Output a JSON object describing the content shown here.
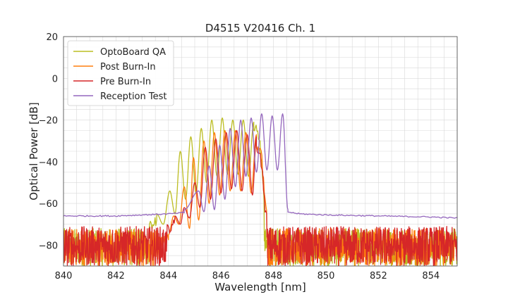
{
  "chart_data": {
    "type": "line",
    "title": "D4515 V20416 Ch. 1",
    "xlabel": "Wavelength [nm]",
    "ylabel": "Optical Power [dB]",
    "xlim": [
      840,
      855
    ],
    "ylim": [
      -90,
      20
    ],
    "x_ticks": [
      "840",
      "842",
      "844",
      "846",
      "848",
      "850",
      "852",
      "854"
    ],
    "y_ticks": [
      "20",
      "0",
      "−20",
      "−40",
      "−60",
      "−80"
    ],
    "grid": true,
    "legend_position": "top-left",
    "series": [
      {
        "name": "OptoBoard QA",
        "color": "#bcbd22",
        "noise_floor_range": [
          -90,
          -72
        ],
        "envelope": [
          [
            843.0,
            -72
          ],
          [
            843.5,
            -66
          ],
          [
            843.8,
            -62
          ],
          [
            844.0,
            -57
          ],
          [
            844.3,
            -45
          ],
          [
            844.5,
            -37
          ],
          [
            844.7,
            -33
          ],
          [
            845.0,
            -28
          ],
          [
            845.3,
            -24
          ],
          [
            845.5,
            -21
          ],
          [
            845.7,
            -20
          ],
          [
            846.0,
            -19
          ],
          [
            846.3,
            -19
          ],
          [
            846.6,
            -20
          ],
          [
            846.9,
            -20
          ],
          [
            847.2,
            -21
          ],
          [
            847.4,
            -22
          ],
          [
            847.55,
            -35
          ],
          [
            847.65,
            -60
          ],
          [
            847.75,
            -70
          ],
          [
            848.0,
            -73
          ]
        ],
        "peaks": [
          [
            843.55,
            -65
          ],
          [
            844.05,
            -54
          ],
          [
            844.45,
            -35
          ],
          [
            844.85,
            -28
          ],
          [
            845.25,
            -24
          ],
          [
            845.65,
            -20
          ],
          [
            846.05,
            -19
          ],
          [
            846.45,
            -20
          ],
          [
            846.85,
            -20
          ],
          [
            847.25,
            -21
          ]
        ],
        "troughs": [
          [
            843.8,
            -70
          ],
          [
            844.25,
            -65
          ],
          [
            844.65,
            -58
          ],
          [
            845.05,
            -55
          ],
          [
            845.45,
            -50
          ],
          [
            845.85,
            -47
          ],
          [
            846.25,
            -46
          ],
          [
            846.65,
            -46
          ],
          [
            847.05,
            -47
          ]
        ]
      },
      {
        "name": "Post Burn-In",
        "color": "#ff7f0e",
        "noise_floor_range": [
          -90,
          -72
        ],
        "envelope": [
          [
            843.6,
            -78
          ],
          [
            844.0,
            -72
          ],
          [
            844.4,
            -66
          ],
          [
            844.7,
            -48
          ],
          [
            845.0,
            -38
          ],
          [
            845.3,
            -31
          ],
          [
            845.5,
            -28
          ],
          [
            845.8,
            -26
          ],
          [
            846.1,
            -25
          ],
          [
            846.4,
            -25
          ],
          [
            846.7,
            -26
          ],
          [
            847.0,
            -26
          ],
          [
            847.3,
            -27
          ],
          [
            847.55,
            -35
          ],
          [
            847.7,
            -60
          ],
          [
            847.85,
            -72
          ],
          [
            848.0,
            -76
          ]
        ],
        "peaks": [
          [
            844.2,
            -66
          ],
          [
            844.6,
            -52
          ],
          [
            844.95,
            -38
          ],
          [
            845.35,
            -30
          ],
          [
            845.75,
            -26
          ],
          [
            846.15,
            -25
          ],
          [
            846.55,
            -25
          ],
          [
            846.95,
            -26
          ],
          [
            847.35,
            -27
          ]
        ],
        "troughs": [
          [
            844.0,
            -75
          ],
          [
            844.4,
            -70
          ],
          [
            844.8,
            -72
          ],
          [
            845.15,
            -68
          ],
          [
            845.55,
            -60
          ],
          [
            845.95,
            -56
          ],
          [
            846.35,
            -54
          ],
          [
            846.75,
            -54
          ],
          [
            847.15,
            -55
          ]
        ]
      },
      {
        "name": "Pre Burn-In",
        "color": "#d62728",
        "noise_floor_range": [
          -90,
          -71
        ],
        "envelope": [
          [
            843.4,
            -74
          ],
          [
            843.8,
            -72
          ],
          [
            844.2,
            -66
          ],
          [
            844.5,
            -62
          ],
          [
            844.8,
            -52
          ],
          [
            845.1,
            -44
          ],
          [
            845.4,
            -36
          ],
          [
            845.6,
            -31
          ],
          [
            845.9,
            -28
          ],
          [
            846.2,
            -26
          ],
          [
            846.5,
            -25
          ],
          [
            846.8,
            -26
          ],
          [
            847.1,
            -27
          ],
          [
            847.35,
            -28
          ],
          [
            847.55,
            -38
          ],
          [
            847.7,
            -62
          ],
          [
            847.85,
            -72
          ],
          [
            848.0,
            -76
          ]
        ],
        "peaks": [
          [
            844.25,
            -66
          ],
          [
            844.6,
            -62
          ],
          [
            845.0,
            -50
          ],
          [
            845.4,
            -33
          ],
          [
            845.8,
            -29
          ],
          [
            846.2,
            -26
          ],
          [
            846.6,
            -25
          ],
          [
            847.0,
            -27
          ],
          [
            847.35,
            -28
          ]
        ],
        "troughs": [
          [
            844.45,
            -70
          ],
          [
            844.8,
            -67
          ],
          [
            845.2,
            -62
          ],
          [
            845.6,
            -58
          ],
          [
            846.0,
            -55
          ],
          [
            846.4,
            -53
          ],
          [
            846.8,
            -54
          ],
          [
            847.2,
            -56
          ]
        ]
      },
      {
        "name": "Reception Test",
        "color": "#9467bd",
        "background": [
          [
            840,
            -66
          ],
          [
            842,
            -66
          ],
          [
            844,
            -65
          ],
          [
            845,
            -64
          ],
          [
            846,
            -64
          ],
          [
            847,
            -63
          ],
          [
            848,
            -64
          ],
          [
            848.5,
            -64
          ],
          [
            849,
            -65
          ],
          [
            850,
            -65.5
          ],
          [
            852,
            -66
          ],
          [
            854,
            -66.5
          ],
          [
            855,
            -67
          ]
        ],
        "peaks": [
          [
            844.6,
            -63
          ],
          [
            845.15,
            -54
          ],
          [
            845.55,
            -42
          ],
          [
            845.95,
            -32
          ],
          [
            846.35,
            -24
          ],
          [
            846.75,
            -20
          ],
          [
            847.15,
            -19
          ],
          [
            847.55,
            -17
          ],
          [
            847.95,
            -18
          ],
          [
            848.35,
            -17
          ]
        ],
        "troughs": [
          [
            845.35,
            -64
          ],
          [
            845.75,
            -63
          ],
          [
            846.15,
            -58
          ],
          [
            846.55,
            -52
          ],
          [
            846.95,
            -47
          ],
          [
            847.35,
            -45
          ],
          [
            847.75,
            -44
          ],
          [
            848.15,
            -44
          ],
          [
            848.55,
            -63
          ]
        ]
      }
    ]
  }
}
